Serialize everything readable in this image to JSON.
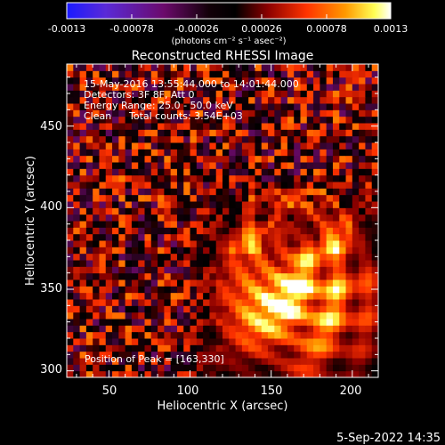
{
  "colorbar": {
    "ticks": [
      "-0.0013",
      "-0.00078",
      "-0.00026",
      "0.00026",
      "0.00078",
      "0.0013"
    ],
    "units_label": "(photons cm⁻² s⁻¹ asec⁻²)",
    "colors": [
      "#1a1aff",
      "#8a2be2",
      "#6b0a6b",
      "#000000",
      "#8b0000",
      "#ff3300",
      "#ff9900",
      "#ffff55",
      "#ffffff"
    ]
  },
  "annotations": {
    "time_range": "15-May-2016 13:55:44.000 to 14:01:44.000",
    "detectors": "Detectors: 3F 8F, Att 0",
    "energy": "Energy Range: 25.0 - 50.0 keV",
    "algorithm": "Clean",
    "counts": "Total counts: 3.54E+03",
    "peak": "Position of Peak = [163,330]"
  },
  "footer": {
    "date": "5-Sep-2022 14:35"
  },
  "chart_data": {
    "type": "heatmap",
    "title": "Reconstructed RHESSI Image",
    "xlabel": "Heliocentric X (arcsec)",
    "ylabel": "Heliocentric Y (arcsec)",
    "xlim": [
      24,
      216
    ],
    "ylim": [
      296,
      488
    ],
    "xticks": [
      50,
      100,
      150,
      200
    ],
    "yticks": [
      300,
      350,
      400,
      450
    ],
    "zlim": [
      -0.0013,
      0.0013
    ],
    "pixel_size_arcsec": 4,
    "peak": {
      "x": 163,
      "y": 330
    },
    "ring_center": {
      "x": 163,
      "y": 378
    },
    "ring_radius_arcsec": 70,
    "background_level": 0.00045
  }
}
